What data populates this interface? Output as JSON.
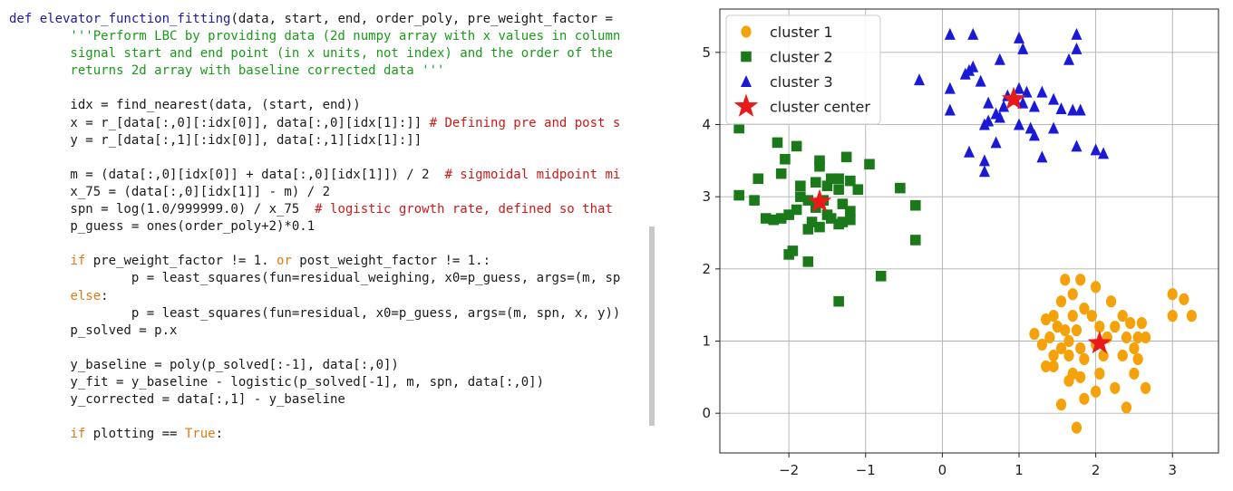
{
  "code": {
    "lines": [
      [
        {
          "t": "def ",
          "c": "kw"
        },
        {
          "t": "elevator_function_fitting",
          "c": "fn"
        },
        {
          "t": "(data, start, end, order_poly, pre_weight_factor = ",
          "c": ""
        }
      ],
      [
        {
          "t": "        '''Perform LBC by providing data (2d numpy array with x values in column",
          "c": "str"
        }
      ],
      [
        {
          "t": "        signal start and end point (in x units, not index) and the order of the",
          "c": "str"
        }
      ],
      [
        {
          "t": "        returns 2d array with baseline corrected data '''",
          "c": "str"
        }
      ],
      [
        {
          "t": "",
          "c": ""
        }
      ],
      [
        {
          "t": "        idx = find_nearest(data, (start, end))",
          "c": ""
        }
      ],
      [
        {
          "t": "        x = r_[data[:,0][:idx[0]], data[:,0][idx[1]:]] ",
          "c": ""
        },
        {
          "t": "# Defining pre and post s",
          "c": "cm"
        }
      ],
      [
        {
          "t": "        y = r_[data[:,1][:idx[0]], data[:,1][idx[1]:]]",
          "c": ""
        }
      ],
      [
        {
          "t": "",
          "c": ""
        }
      ],
      [
        {
          "t": "        m = (data[:,0][idx[0]] + data[:,0][idx[1]]) / 2  ",
          "c": ""
        },
        {
          "t": "# sigmoidal midpoint mi",
          "c": "cm"
        }
      ],
      [
        {
          "t": "        x_75 = (data[:,0][idx[1]] - m) / 2",
          "c": ""
        }
      ],
      [
        {
          "t": "        spn = log(1.0/999999.0) / x_75  ",
          "c": ""
        },
        {
          "t": "# logistic growth rate, defined so that",
          "c": "cm"
        }
      ],
      [
        {
          "t": "        p_guess = ones(order_poly+2)*0.1",
          "c": ""
        }
      ],
      [
        {
          "t": "",
          "c": ""
        }
      ],
      [
        {
          "t": "        ",
          "c": ""
        },
        {
          "t": "if",
          "c": "kw2"
        },
        {
          "t": " pre_weight_factor != 1. ",
          "c": ""
        },
        {
          "t": "or",
          "c": "kw2"
        },
        {
          "t": " post_weight_factor != 1.:",
          "c": ""
        }
      ],
      [
        {
          "t": "                p = least_squares(fun=residual_weighing, x0=p_guess, args=(m, sp",
          "c": ""
        }
      ],
      [
        {
          "t": "        ",
          "c": ""
        },
        {
          "t": "else",
          "c": "kw2"
        },
        {
          "t": ":",
          "c": ""
        }
      ],
      [
        {
          "t": "                p = least_squares(fun=residual, x0=p_guess, args=(m, spn, x, y))",
          "c": ""
        }
      ],
      [
        {
          "t": "        p_solved = p.x",
          "c": ""
        }
      ],
      [
        {
          "t": "",
          "c": ""
        }
      ],
      [
        {
          "t": "        y_baseline = poly(p_solved[:-1], data[:,0])",
          "c": ""
        }
      ],
      [
        {
          "t": "        y_fit = y_baseline - logistic(p_solved[-1], m, spn, data[:,0])",
          "c": ""
        }
      ],
      [
        {
          "t": "        y_corrected = data[:,1] - y_baseline",
          "c": ""
        }
      ],
      [
        {
          "t": "",
          "c": ""
        }
      ],
      [
        {
          "t": "        ",
          "c": ""
        },
        {
          "t": "if",
          "c": "kw2"
        },
        {
          "t": " plotting == ",
          "c": ""
        },
        {
          "t": "True",
          "c": "kw2"
        },
        {
          "t": ":",
          "c": ""
        }
      ]
    ]
  },
  "chart_data": {
    "type": "scatter",
    "title": "",
    "xlabel": "",
    "ylabel": "",
    "xlim": [
      -2.9,
      3.6
    ],
    "ylim": [
      -0.55,
      5.6
    ],
    "xticks": [
      -2,
      -1,
      0,
      1,
      2,
      3
    ],
    "xtick_labels": [
      "−2",
      "−1",
      "0",
      "1",
      "2",
      "3"
    ],
    "yticks": [
      0,
      1,
      2,
      3,
      4,
      5
    ],
    "ytick_labels": [
      "0",
      "1",
      "2",
      "3",
      "4",
      "5"
    ],
    "grid": true,
    "legend": "top-left",
    "series": [
      {
        "name": "cluster 1",
        "marker": "circle",
        "color": "#f5a10a",
        "points": [
          [
            1.6,
            1.85
          ],
          [
            1.8,
            1.85
          ],
          [
            1.7,
            1.65
          ],
          [
            2.0,
            1.75
          ],
          [
            1.55,
            1.55
          ],
          [
            2.2,
            1.55
          ],
          [
            1.85,
            1.45
          ],
          [
            1.45,
            1.35
          ],
          [
            1.7,
            1.35
          ],
          [
            1.95,
            1.35
          ],
          [
            2.35,
            1.35
          ],
          [
            2.45,
            1.25
          ],
          [
            2.6,
            1.25
          ],
          [
            1.35,
            1.3
          ],
          [
            1.5,
            1.2
          ],
          [
            1.6,
            1.15
          ],
          [
            1.75,
            1.15
          ],
          [
            2.05,
            1.2
          ],
          [
            2.25,
            1.2
          ],
          [
            1.2,
            1.1
          ],
          [
            1.4,
            1.05
          ],
          [
            1.65,
            1.0
          ],
          [
            2.15,
            1.05
          ],
          [
            2.4,
            1.05
          ],
          [
            2.55,
            1.05
          ],
          [
            2.65,
            1.05
          ],
          [
            1.3,
            0.95
          ],
          [
            1.55,
            0.9
          ],
          [
            1.8,
            0.9
          ],
          [
            2.0,
            0.95
          ],
          [
            2.5,
            0.9
          ],
          [
            1.45,
            0.8
          ],
          [
            1.65,
            0.8
          ],
          [
            1.85,
            0.75
          ],
          [
            2.1,
            0.8
          ],
          [
            2.35,
            0.8
          ],
          [
            2.55,
            0.75
          ],
          [
            1.35,
            0.65
          ],
          [
            1.45,
            0.65
          ],
          [
            1.7,
            0.55
          ],
          [
            1.8,
            0.5
          ],
          [
            2.05,
            0.55
          ],
          [
            2.5,
            0.55
          ],
          [
            1.65,
            0.45
          ],
          [
            2.0,
            0.3
          ],
          [
            2.25,
            0.35
          ],
          [
            2.65,
            0.35
          ],
          [
            1.85,
            0.2
          ],
          [
            1.55,
            0.12
          ],
          [
            2.4,
            0.08
          ],
          [
            1.75,
            -0.2
          ],
          [
            3.0,
            1.65
          ],
          [
            3.15,
            1.58
          ],
          [
            3.0,
            1.35
          ],
          [
            3.25,
            1.35
          ]
        ]
      },
      {
        "name": "cluster 2",
        "marker": "square",
        "color": "#1a7a1a",
        "points": [
          [
            -2.65,
            3.95
          ],
          [
            -2.15,
            3.75
          ],
          [
            -1.9,
            3.7
          ],
          [
            -2.05,
            3.52
          ],
          [
            -1.6,
            3.5
          ],
          [
            -1.6,
            3.42
          ],
          [
            -1.25,
            3.55
          ],
          [
            -0.95,
            3.45
          ],
          [
            -2.1,
            3.32
          ],
          [
            -1.45,
            3.25
          ],
          [
            -1.35,
            3.25
          ],
          [
            -1.2,
            3.22
          ],
          [
            -1.65,
            3.2
          ],
          [
            -2.4,
            3.25
          ],
          [
            -1.85,
            3.15
          ],
          [
            -1.5,
            3.15
          ],
          [
            -1.35,
            3.1
          ],
          [
            -1.1,
            3.1
          ],
          [
            -0.55,
            3.12
          ],
          [
            -2.65,
            3.02
          ],
          [
            -2.45,
            2.95
          ],
          [
            -1.85,
            3.0
          ],
          [
            -1.75,
            2.95
          ],
          [
            -1.55,
            2.95
          ],
          [
            -1.3,
            2.9
          ],
          [
            -1.9,
            2.82
          ],
          [
            -1.65,
            2.85
          ],
          [
            -1.5,
            2.75
          ],
          [
            -1.2,
            2.8
          ],
          [
            -0.35,
            2.88
          ],
          [
            -2.0,
            2.75
          ],
          [
            -2.1,
            2.7
          ],
          [
            -1.7,
            2.65
          ],
          [
            -1.45,
            2.7
          ],
          [
            -1.3,
            2.65
          ],
          [
            -1.2,
            2.68
          ],
          [
            -2.3,
            2.7
          ],
          [
            -2.2,
            2.68
          ],
          [
            -1.75,
            2.55
          ],
          [
            -1.6,
            2.58
          ],
          [
            -1.35,
            2.62
          ],
          [
            -0.35,
            2.4
          ],
          [
            -1.95,
            2.25
          ],
          [
            -2.0,
            2.2
          ],
          [
            -1.75,
            2.1
          ],
          [
            -0.8,
            1.9
          ],
          [
            -1.35,
            1.55
          ]
        ]
      },
      {
        "name": "cluster 3",
        "marker": "triangle",
        "color": "#1a1ad6",
        "points": [
          [
            0.1,
            5.25
          ],
          [
            0.4,
            5.25
          ],
          [
            1.0,
            5.2
          ],
          [
            1.75,
            5.25
          ],
          [
            1.05,
            5.05
          ],
          [
            1.75,
            5.05
          ],
          [
            1.65,
            4.9
          ],
          [
            0.75,
            4.9
          ],
          [
            0.4,
            4.8
          ],
          [
            0.35,
            4.75
          ],
          [
            0.3,
            4.7
          ],
          [
            0.5,
            4.6
          ],
          [
            -0.3,
            4.62
          ],
          [
            0.1,
            4.5
          ],
          [
            1.0,
            4.5
          ],
          [
            1.1,
            4.45
          ],
          [
            0.85,
            4.4
          ],
          [
            1.3,
            4.45
          ],
          [
            0.95,
            4.35
          ],
          [
            1.05,
            4.3
          ],
          [
            1.45,
            4.35
          ],
          [
            0.6,
            4.3
          ],
          [
            0.8,
            4.25
          ],
          [
            1.2,
            4.25
          ],
          [
            1.55,
            4.22
          ],
          [
            1.7,
            4.2
          ],
          [
            1.8,
            4.2
          ],
          [
            0.1,
            4.2
          ],
          [
            0.7,
            4.15
          ],
          [
            0.75,
            4.1
          ],
          [
            0.6,
            4.05
          ],
          [
            0.55,
            4.0
          ],
          [
            1.0,
            4.0
          ],
          [
            1.15,
            3.95
          ],
          [
            1.45,
            3.95
          ],
          [
            1.2,
            3.85
          ],
          [
            0.7,
            3.75
          ],
          [
            1.75,
            3.7
          ],
          [
            0.35,
            3.62
          ],
          [
            2.1,
            3.6
          ],
          [
            1.3,
            3.55
          ],
          [
            2.0,
            3.65
          ],
          [
            0.55,
            3.5
          ],
          [
            0.55,
            3.35
          ]
        ]
      },
      {
        "name": "cluster center",
        "marker": "star",
        "color": "#e81a1a",
        "points": [
          [
            -1.6,
            2.93
          ],
          [
            0.93,
            4.35
          ],
          [
            2.05,
            0.97
          ]
        ]
      }
    ]
  }
}
